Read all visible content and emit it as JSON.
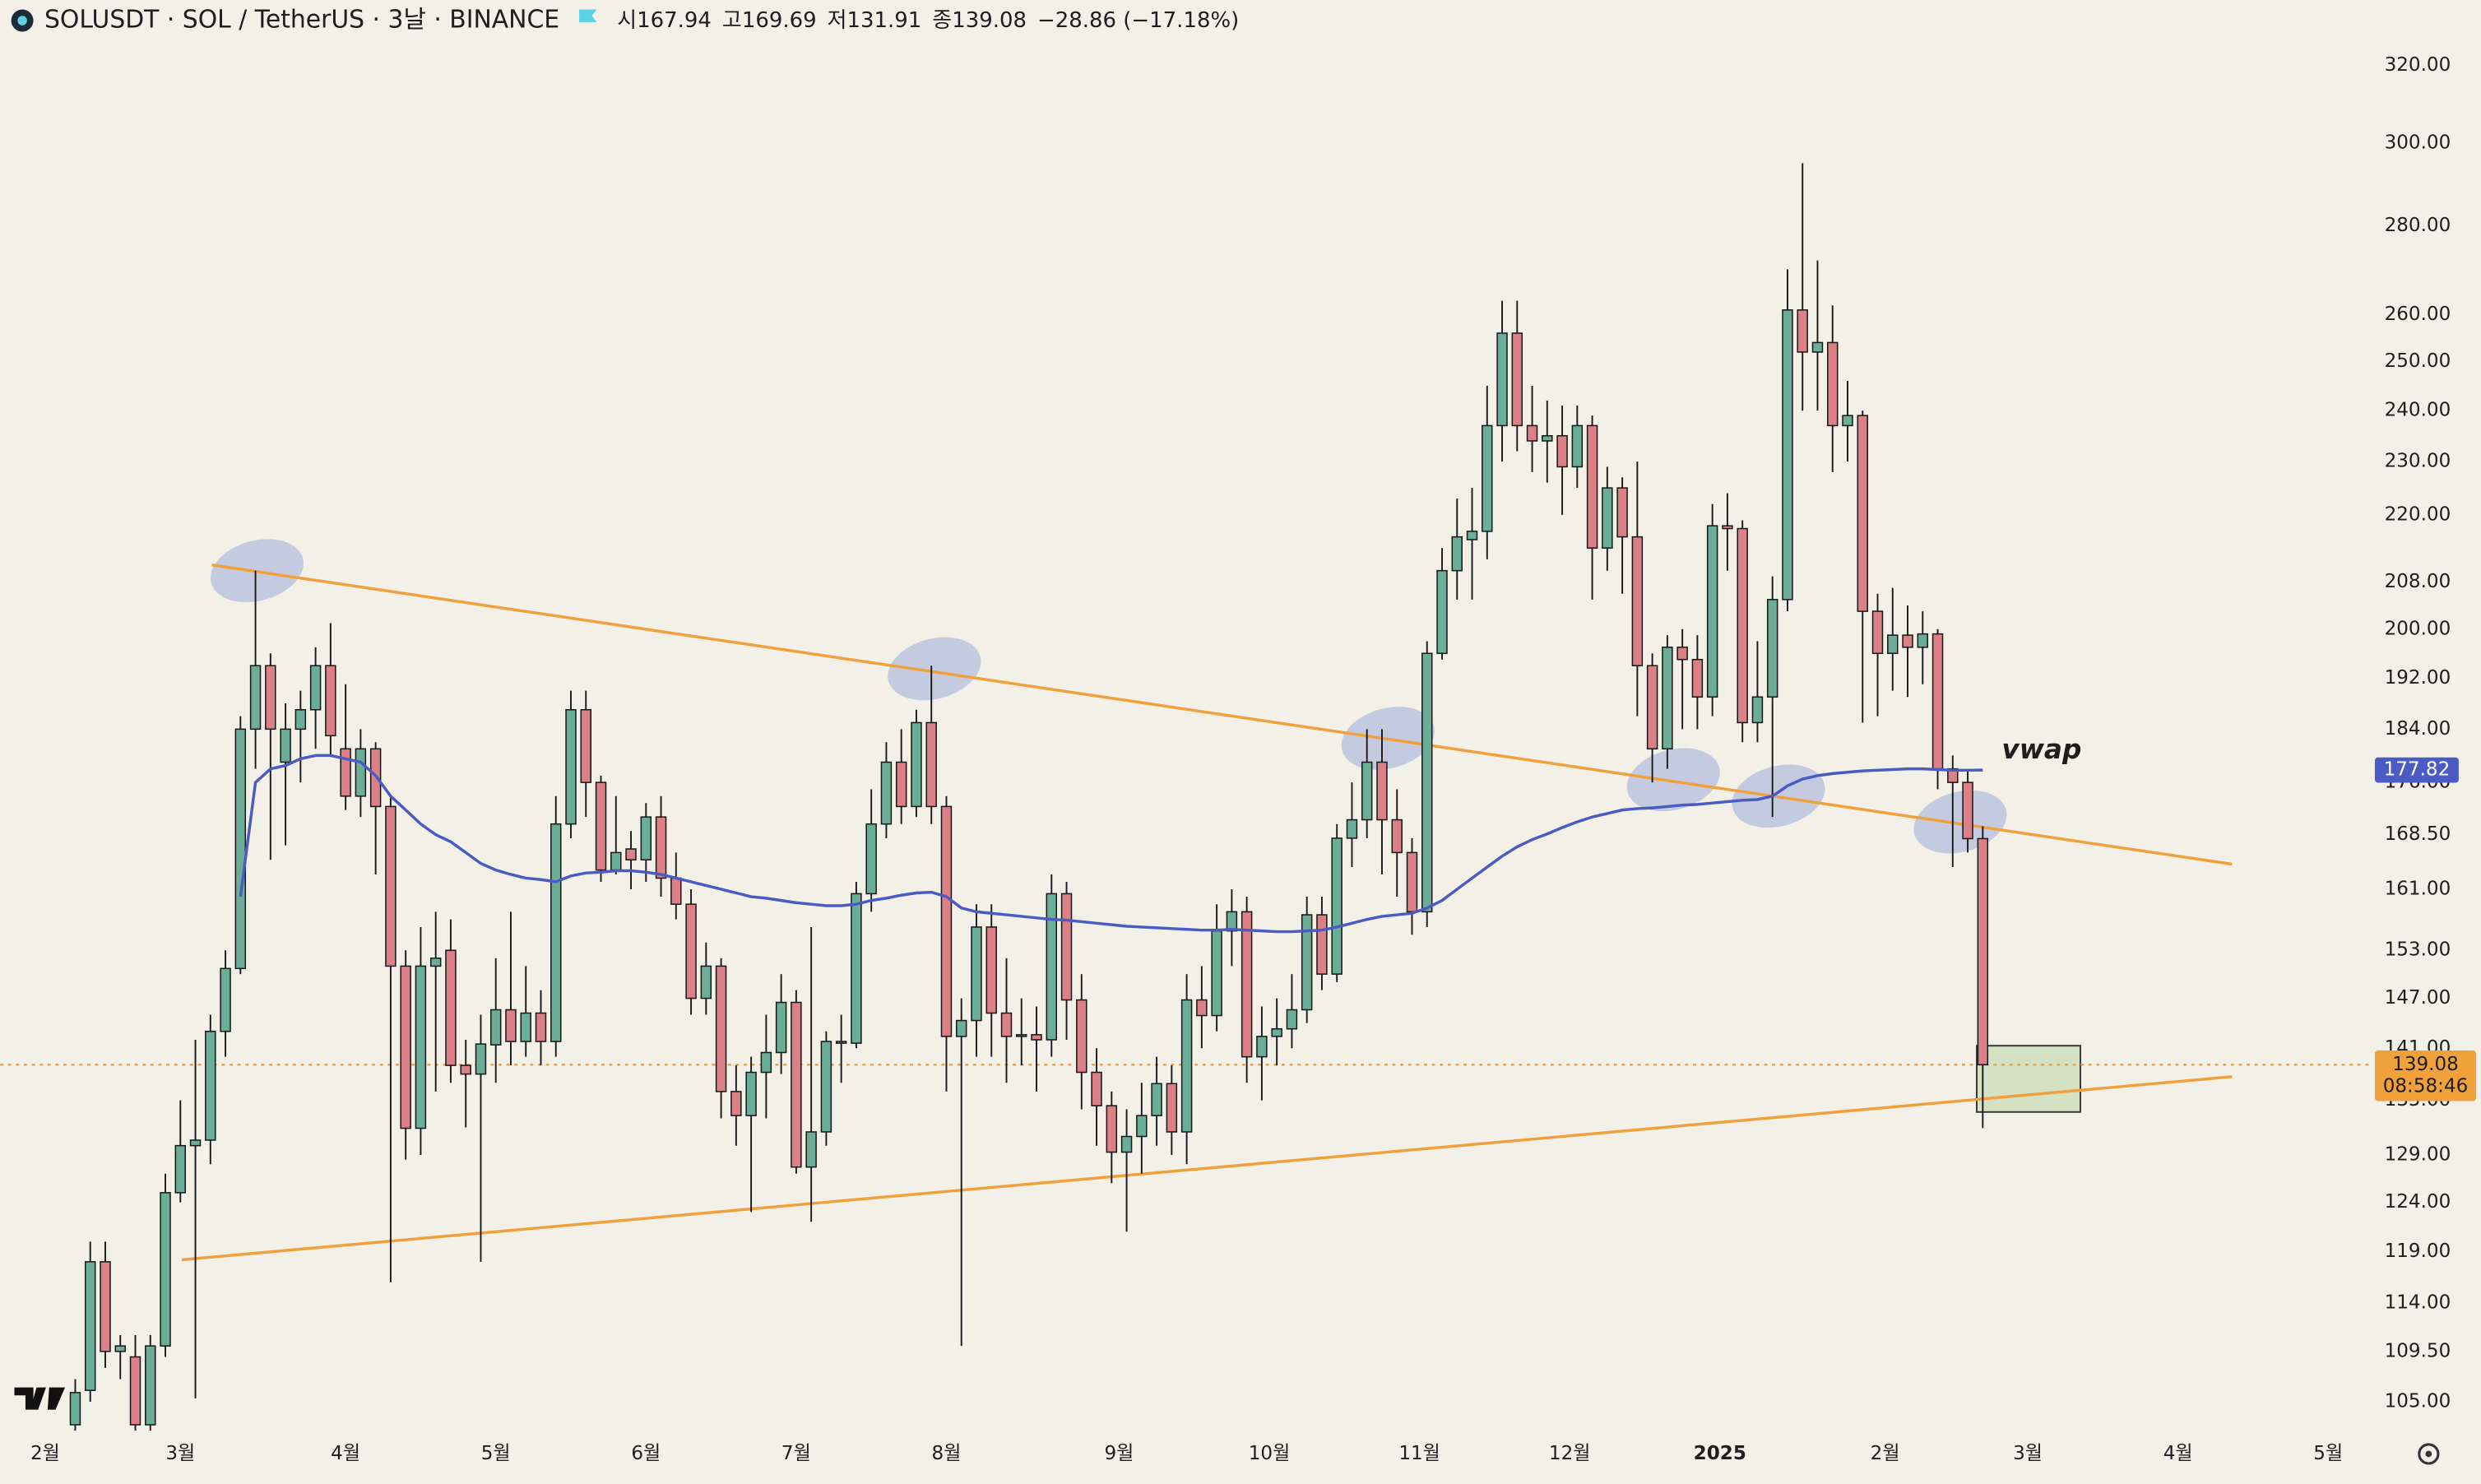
{
  "header": {
    "symbol": "SOLUSDT · SOL / TetherUS · 3날 · BINANCE",
    "labels": [
      "시",
      "고",
      "저",
      "종"
    ],
    "change": "−28.86 (−17.18%)"
  },
  "chart_data": {
    "type": "candlestick",
    "log_scale": true,
    "grid": false,
    "up_color": "#6aae98",
    "down_color": "#dc8088",
    "open": [
      103,
      106,
      118,
      109.5,
      109,
      103,
      110,
      125,
      130,
      130.6,
      143,
      150.7,
      184,
      194,
      179,
      184,
      187,
      194,
      181,
      174,
      181,
      172.5,
      151,
      131.9,
      151,
      153,
      139,
      138,
      141.4,
      145.6,
      141.8,
      145.2,
      141.8,
      170,
      187,
      176,
      163.6,
      166.5,
      165,
      171,
      162.5,
      159,
      147,
      151,
      136,
      133.3,
      138.2,
      140.5,
      146.5,
      127.7,
      131.5,
      141.8,
      141.6,
      160.4,
      170,
      179,
      172.5,
      185,
      172.5,
      142.4,
      144.3,
      156,
      145.2,
      142.4,
      142.6,
      142,
      160.4,
      146.8,
      138.2,
      134.4,
      129.3,
      131,
      133.3,
      136.9,
      131.5,
      146.8,
      144.9,
      155.5,
      158,
      140,
      142.4,
      143.3,
      145.6,
      157.6,
      150,
      168,
      170.6,
      179,
      170.6,
      166,
      158,
      196,
      210,
      215.5,
      217,
      237,
      256,
      237,
      234,
      235,
      229,
      237,
      214,
      225,
      216,
      194,
      181,
      197,
      195,
      189,
      218,
      217.5,
      185,
      189,
      205,
      261,
      252,
      254,
      237,
      239,
      203,
      196,
      199,
      197,
      199.2,
      178,
      176,
      167.94
    ],
    "high": [
      107,
      120,
      120,
      111,
      111,
      111,
      127,
      135,
      142,
      145,
      153,
      186,
      210,
      196,
      188,
      190,
      197,
      201,
      191,
      184,
      182,
      174,
      153,
      156,
      158,
      157,
      142,
      145,
      152,
      158,
      151,
      148,
      174,
      190,
      190,
      177,
      174,
      169,
      173,
      174,
      166,
      161,
      154,
      152,
      139,
      140,
      145,
      150,
      148,
      156,
      143,
      145,
      162,
      175,
      182,
      184,
      187,
      194,
      174,
      147,
      159,
      159,
      152,
      147,
      146,
      163,
      162,
      150,
      141,
      136,
      134,
      137,
      140,
      139,
      150,
      151,
      159,
      161,
      160,
      146,
      147,
      150,
      160,
      160,
      170,
      176,
      184,
      184,
      175,
      168,
      198,
      214,
      223,
      225,
      245,
      263,
      263,
      245,
      242,
      241,
      241,
      239,
      229,
      227,
      230,
      196,
      199,
      200,
      199,
      222,
      224,
      219,
      198,
      209,
      270,
      295,
      272,
      262,
      246,
      240,
      206,
      207,
      204,
      203,
      200,
      180,
      178,
      169.69
    ],
    "low": [
      102.5,
      105,
      108,
      107,
      102.5,
      102.5,
      109,
      124,
      105.3,
      128,
      140,
      150,
      178,
      165,
      167,
      176,
      181,
      180,
      172,
      171,
      163,
      116,
      128.5,
      129,
      136,
      137,
      132,
      118,
      137,
      139,
      140,
      139,
      140,
      168,
      171,
      162,
      163,
      161,
      162,
      160,
      157,
      145,
      145,
      133,
      130,
      123,
      133,
      138,
      127,
      122,
      130,
      137,
      141,
      158,
      168,
      170,
      171,
      170,
      136,
      110,
      140,
      140,
      137,
      139,
      136,
      140,
      142,
      134,
      130,
      126,
      121,
      127,
      130,
      129,
      128,
      141,
      143,
      151,
      137,
      135,
      139,
      141,
      144,
      148,
      149,
      164,
      168,
      163,
      160,
      155,
      156,
      195,
      205,
      205,
      212,
      230,
      232,
      228,
      226,
      220,
      225,
      205,
      210,
      206,
      186,
      176,
      178,
      184,
      184,
      186,
      210,
      182,
      182,
      171,
      203,
      240,
      240,
      228,
      230,
      185,
      186,
      190,
      189,
      191,
      175,
      164,
      166,
      131.91
    ],
    "close": [
      105.8,
      118,
      109.5,
      110,
      103,
      110,
      125,
      130,
      130.6,
      143,
      150.7,
      184,
      194,
      184,
      184,
      187,
      194,
      183,
      174,
      181,
      172.5,
      151,
      131.9,
      151,
      152,
      139,
      138,
      141.5,
      145.6,
      141.8,
      145.2,
      141.8,
      170,
      187,
      176,
      163.6,
      166,
      165,
      171,
      162.5,
      159,
      147,
      151,
      136,
      133.3,
      138.2,
      140.5,
      146.5,
      127.7,
      131.5,
      141.8,
      141.6,
      160.4,
      170,
      179,
      172.5,
      185,
      172.5,
      142.4,
      144.3,
      156,
      145.2,
      142.4,
      142.6,
      142,
      160.4,
      146.8,
      138.2,
      134.4,
      129.3,
      131,
      133.3,
      136.9,
      131.5,
      146.8,
      144.9,
      155.5,
      158,
      140,
      142.4,
      143.3,
      145.6,
      157.6,
      150,
      168,
      170.6,
      179,
      170.6,
      166,
      158,
      196,
      210,
      216,
      217,
      237,
      256,
      237,
      234,
      235,
      229,
      237,
      214,
      225,
      216,
      194,
      181,
      197,
      195,
      189,
      218,
      217.5,
      185,
      189,
      205,
      261,
      252,
      254,
      237,
      239,
      203,
      196,
      199,
      197,
      199.2,
      178,
      176,
      167.94,
      139.08
    ],
    "series": [
      {
        "name": "vwap",
        "color": "#4a5cc4",
        "values": [
          null,
          null,
          null,
          null,
          null,
          null,
          null,
          null,
          null,
          null,
          null,
          160,
          176,
          178,
          178.5,
          179.5,
          180,
          180,
          179.5,
          179,
          177,
          174,
          172,
          170,
          168.5,
          167.5,
          166,
          164.5,
          163.6,
          163,
          162.5,
          162.3,
          162,
          162.8,
          163.2,
          163.3,
          163.5,
          163.5,
          163.3,
          163,
          162.5,
          162,
          161.5,
          161,
          160.5,
          160,
          159.8,
          159.5,
          159.2,
          159,
          158.8,
          158.8,
          159,
          159.5,
          159.8,
          160.2,
          160.5,
          160.6,
          160,
          158.5,
          158,
          157.8,
          157.6,
          157.4,
          157.2,
          157,
          156.9,
          156.7,
          156.5,
          156.3,
          156.1,
          156,
          155.9,
          155.8,
          155.7,
          155.6,
          155.6,
          155.7,
          155.6,
          155.5,
          155.4,
          155.4,
          155.5,
          155.6,
          156,
          156.5,
          157,
          157.4,
          157.6,
          157.8,
          158.5,
          159.5,
          161,
          162.5,
          164,
          165.5,
          166.8,
          167.8,
          168.6,
          169.5,
          170.3,
          171,
          171.5,
          172,
          172.2,
          172.3,
          172.5,
          172.7,
          172.8,
          173,
          173.2,
          173.4,
          173.5,
          174,
          175.5,
          176.5,
          177,
          177.3,
          177.5,
          177.7,
          177.8,
          177.9,
          178,
          178,
          177.9,
          177.8,
          177.8,
          177.82
        ]
      }
    ],
    "last_price_color": "#f0a13c",
    "countdown": "08:58:46",
    "xlim": [
      -5,
      153
    ],
    "ylim": [
      102.4,
      338
    ],
    "xticks": [
      {
        "value": -2,
        "label": "2월"
      },
      {
        "value": 7,
        "label": "3월"
      },
      {
        "value": 18,
        "label": "4월"
      },
      {
        "value": 28,
        "label": "5월"
      },
      {
        "value": 38,
        "label": "6월"
      },
      {
        "value": 48,
        "label": "7월"
      },
      {
        "value": 58,
        "label": "8월"
      },
      {
        "value": 69.5,
        "label": "9월"
      },
      {
        "value": 79.5,
        "label": "10월"
      },
      {
        "value": 89.5,
        "label": "11월"
      },
      {
        "value": 99.5,
        "label": "12월"
      },
      {
        "value": 109.5,
        "label": "2025"
      },
      {
        "value": 120.5,
        "label": "2월"
      },
      {
        "value": 130,
        "label": "3월"
      },
      {
        "value": 140,
        "label": "4월"
      },
      {
        "value": 150,
        "label": "5월"
      }
    ],
    "yticks": [
      {
        "value": 105,
        "label": "105.00"
      },
      {
        "value": 109.5,
        "label": "109.50"
      },
      {
        "value": 114,
        "label": "114.00"
      },
      {
        "value": 119,
        "label": "119.00"
      },
      {
        "value": 124,
        "label": "124.00"
      },
      {
        "value": 129,
        "label": "129.00"
      },
      {
        "value": 135,
        "label": "135.00"
      },
      {
        "value": 141,
        "label": "141.00"
      },
      {
        "value": 147,
        "label": "147.00"
      },
      {
        "value": 153,
        "label": "153.00"
      },
      {
        "value": 161,
        "label": "161.00"
      },
      {
        "value": 168.5,
        "label": "168.50"
      },
      {
        "value": 176,
        "label": "176.00"
      },
      {
        "value": 184,
        "label": "184.00"
      },
      {
        "value": 192,
        "label": "192.00"
      },
      {
        "value": 200,
        "label": "200.00"
      },
      {
        "value": 208,
        "label": "208.00"
      },
      {
        "value": 220,
        "label": "220.00"
      },
      {
        "value": 230,
        "label": "230.00"
      },
      {
        "value": 240,
        "label": "240.00"
      },
      {
        "value": 250,
        "label": "250.00"
      },
      {
        "value": 260,
        "label": "260.00"
      },
      {
        "value": 280,
        "label": "280.00"
      },
      {
        "value": 300,
        "label": "300.00"
      },
      {
        "value": 320,
        "label": "320.00"
      }
    ],
    "trendlines": [
      {
        "x": [
          9.1,
          143.6
        ],
        "y": [
          211,
          164.4
        ],
        "color": "#f0a03c"
      },
      {
        "x": [
          7.1,
          143.6
        ],
        "y": [
          118.2,
          137.7
        ],
        "color": "#f0a03c"
      }
    ],
    "highlights": [
      {
        "x": 12.1,
        "y": 210
      },
      {
        "x": 57.2,
        "y": 193.5
      },
      {
        "x": 87.4,
        "y": 182.6
      },
      {
        "x": 106.4,
        "y": 176.4
      },
      {
        "x": 113.4,
        "y": 174
      },
      {
        "x": 125.5,
        "y": 170.3
      }
    ],
    "zones": [
      {
        "x": [
          126.6,
          133.5
        ],
        "y": [
          133.7,
          141.3
        ]
      }
    ]
  }
}
